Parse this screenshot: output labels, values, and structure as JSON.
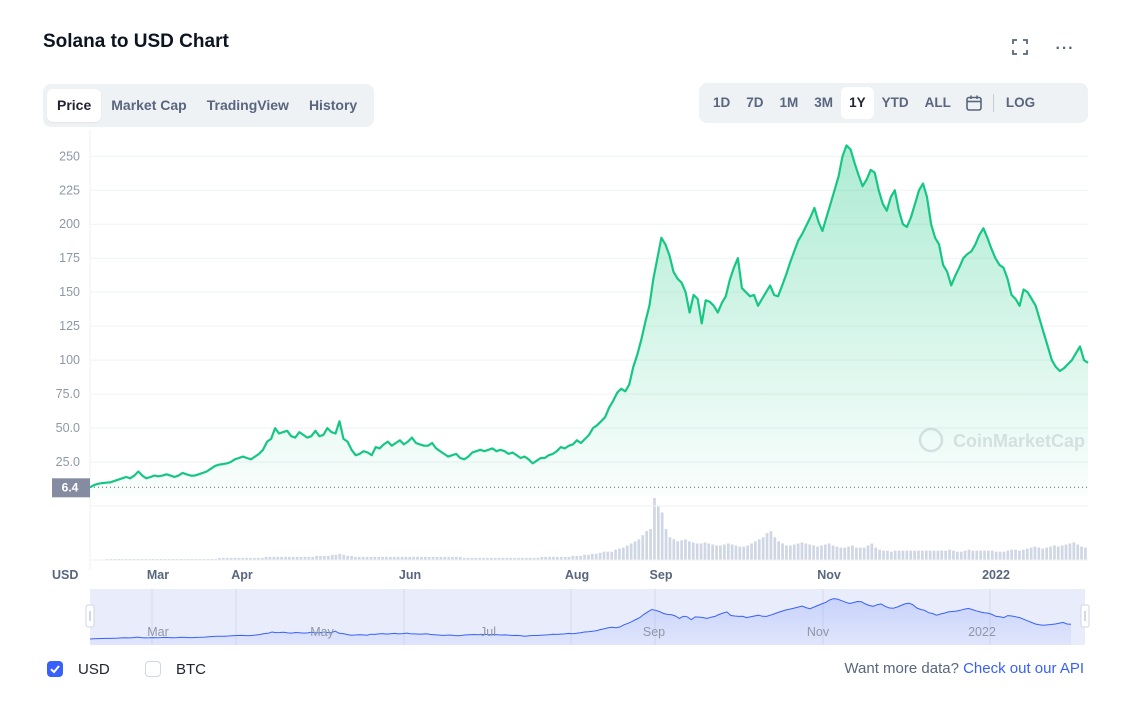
{
  "header": {
    "title": "Solana to USD Chart",
    "fullscreen_icon": "fullscreen-icon",
    "more_icon": "more-horizontal-icon",
    "more_glyph": "···"
  },
  "tabs": [
    {
      "label": "Price",
      "active": true
    },
    {
      "label": "Market Cap",
      "active": false
    },
    {
      "label": "TradingView",
      "active": false
    },
    {
      "label": "History",
      "active": false
    }
  ],
  "ranges": [
    {
      "label": "1D",
      "active": false
    },
    {
      "label": "7D",
      "active": false
    },
    {
      "label": "1M",
      "active": false
    },
    {
      "label": "3M",
      "active": false
    },
    {
      "label": "1Y",
      "active": true
    },
    {
      "label": "YTD",
      "active": false
    },
    {
      "label": "ALL",
      "active": false
    }
  ],
  "calendar_icon": "calendar-icon",
  "log_label": "LOG",
  "colors": {
    "price_line": "#16c784",
    "navigator_line": "#3861fb",
    "accent": "#3861fb",
    "grid": "#eff2f5"
  },
  "chart_data": {
    "type": "area",
    "x_ticks": [
      "Mar",
      "Apr",
      "Jun",
      "Aug",
      "Sep",
      "Nov",
      "2022"
    ],
    "currency_label": "USD",
    "y_ticks": [
      "250",
      "225",
      "200",
      "175",
      "150",
      "125",
      "100",
      "75.0",
      "50.0",
      "25.0"
    ],
    "ylim": [
      0,
      262
    ],
    "current_price_label": "6.4",
    "watermark": "CoinMarketCap",
    "series": [
      {
        "values": [
          6.4,
          8,
          9,
          9.5,
          9.8,
          10,
          11,
          12,
          13,
          14,
          13,
          15,
          18,
          15,
          13,
          14,
          15,
          14.5,
          15,
          16,
          15,
          14,
          15,
          17,
          16,
          15,
          15,
          16,
          17,
          18,
          20,
          22,
          23,
          23.5,
          24,
          25,
          27,
          28,
          29,
          28,
          27,
          29,
          31,
          34,
          40,
          42,
          50,
          46,
          47,
          48,
          44,
          43,
          47,
          45,
          43,
          44,
          48,
          44,
          45,
          50,
          47,
          46,
          55,
          42,
          40,
          34,
          30,
          31,
          33,
          32,
          30,
          36,
          35,
          38,
          40,
          37,
          39,
          41,
          38,
          40,
          43,
          39,
          38,
          37,
          37,
          39,
          35,
          33,
          31,
          29,
          30,
          31,
          28,
          27,
          29,
          32,
          33,
          34,
          33,
          34,
          35,
          33,
          34,
          33,
          31,
          32,
          30,
          28,
          29,
          27,
          24,
          26,
          28,
          28,
          30,
          31,
          33,
          36,
          35,
          37,
          38,
          41,
          39,
          42,
          45,
          50,
          52,
          55,
          58,
          65,
          70,
          76,
          79,
          77,
          82,
          95,
          104,
          115,
          128,
          140,
          160,
          175,
          190,
          185,
          177,
          165,
          160,
          157,
          150,
          135,
          148,
          145,
          127,
          144,
          143,
          140,
          135,
          142,
          147,
          159,
          168,
          175,
          153,
          150,
          147,
          148,
          140,
          145,
          150,
          155,
          148,
          147,
          155,
          163,
          172,
          180,
          188,
          193,
          199,
          205,
          212,
          202,
          195,
          205,
          215,
          225,
          235,
          250,
          258,
          255,
          245,
          236,
          228,
          233,
          240,
          238,
          225,
          215,
          210,
          220,
          225,
          210,
          200,
          198,
          205,
          215,
          225,
          230,
          220,
          200,
          190,
          185,
          170,
          165,
          155,
          162,
          168,
          175,
          178,
          180,
          185,
          192,
          197,
          190,
          182,
          175,
          170,
          168,
          160,
          148,
          145,
          140,
          152,
          150,
          145,
          140,
          130,
          120,
          110,
          100,
          95,
          92,
          94,
          97,
          100,
          105,
          110,
          100,
          98
        ]
      }
    ],
    "volume_values": [
      0,
      0,
      0,
      0,
      1,
      1,
      1,
      1,
      1,
      1,
      1,
      1,
      1,
      1,
      1,
      1,
      1,
      1,
      1,
      1,
      1,
      1,
      1,
      1,
      1,
      1,
      1,
      1,
      1,
      1,
      1,
      1,
      1,
      2,
      2,
      2,
      2,
      2,
      2,
      2,
      2,
      2,
      2,
      2,
      2,
      3,
      3,
      3,
      3,
      3,
      3,
      3,
      3,
      3,
      3,
      3,
      3,
      3,
      4,
      4,
      4,
      4,
      5,
      5,
      6,
      5,
      4,
      4,
      3,
      3,
      3,
      3,
      3,
      3,
      3,
      3,
      3,
      3,
      3,
      3,
      3,
      3,
      3,
      3,
      3,
      3,
      3,
      3,
      3,
      3,
      3,
      3,
      3,
      3,
      3,
      3,
      2,
      2,
      2,
      2,
      2,
      2,
      2,
      2,
      2,
      2,
      2,
      2,
      2,
      2,
      2,
      2,
      2,
      2,
      2,
      2,
      3,
      3,
      3,
      3,
      3,
      3,
      3,
      3,
      4,
      4,
      4,
      5,
      5,
      6,
      6,
      7,
      8,
      8,
      8,
      10,
      11,
      12,
      14,
      16,
      18,
      20,
      24,
      28,
      30,
      60,
      52,
      46,
      30,
      22,
      20,
      18,
      19,
      20,
      18,
      17,
      16,
      16,
      17,
      16,
      15,
      14,
      14,
      15,
      16,
      15,
      14,
      13,
      13,
      14,
      16,
      18,
      20,
      22,
      26,
      28,
      22,
      18,
      16,
      14,
      14,
      15,
      16,
      17,
      16,
      15,
      14,
      13,
      14,
      15,
      16,
      14,
      13,
      12,
      12,
      13,
      14,
      12,
      12,
      12,
      14,
      16,
      12,
      10,
      9,
      9,
      8,
      9,
      9,
      9,
      9,
      9,
      9,
      9,
      9,
      9,
      9,
      9,
      9,
      9,
      9,
      10,
      9,
      8,
      8,
      9,
      10,
      9,
      9,
      9,
      9,
      9,
      9,
      8,
      8,
      8,
      9,
      10,
      10,
      9,
      10,
      11,
      12,
      13,
      12,
      11,
      12,
      13,
      14,
      13,
      14,
      15,
      16,
      17,
      15,
      13,
      12
    ]
  },
  "navigator": {
    "labels": [
      "Mar",
      "May",
      "Jul",
      "Sep",
      "Nov",
      "2022"
    ]
  },
  "footer": {
    "usd_label": "USD",
    "usd_checked": true,
    "btc_label": "BTC",
    "btc_checked": false,
    "more_text": "Want more data?",
    "api_link": "Check out our API"
  }
}
